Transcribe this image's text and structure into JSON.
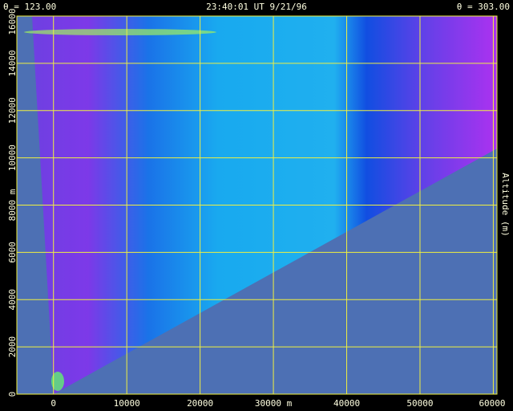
{
  "chart_data": {
    "type": "image",
    "left_label": "θ = 123.00",
    "title": "23:40:01 UT  9/21/96",
    "right_label": "θ = 303.00",
    "y_label": "Altitude (m)",
    "xlim": [
      -5000,
      60500
    ],
    "ylim": [
      0,
      16000
    ],
    "xticks": [
      0,
      10000,
      20000,
      {
        "value": 30000,
        "label": "30000 m"
      },
      40000,
      50000,
      60000
    ],
    "yticks": [
      0,
      2000,
      4000,
      6000,
      {
        "value": 8000,
        "label": "8000 m"
      },
      10000,
      12000,
      14000,
      16000
    ],
    "grid": true,
    "grid_color": "#f0f040"
  }
}
